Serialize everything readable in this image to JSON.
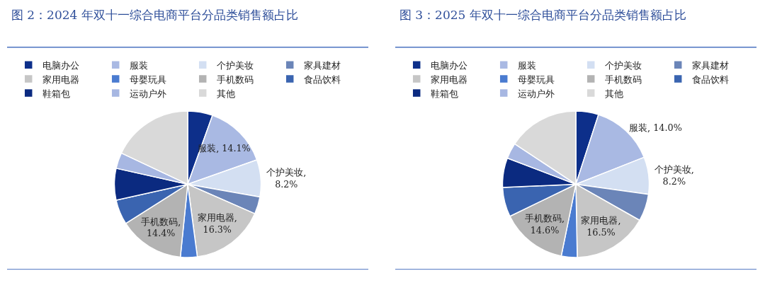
{
  "chart_data": [
    {
      "type": "pie",
      "title": "图 2：2024 年双十一综合电商平台分品类销售额占比",
      "categories": [
        "电脑办公",
        "服装",
        "个护美妆",
        "家具建材",
        "家用电器",
        "母婴玩具",
        "手机数码",
        "食品饮料",
        "鞋箱包",
        "运动户外",
        "其他"
      ],
      "values": [
        5.5,
        14.1,
        8.2,
        3.8,
        16.3,
        3.7,
        14.4,
        5.5,
        7.0,
        3.5,
        18.0
      ],
      "value_labels": [
        null,
        "服装, 14.1%",
        "个护美妆,\n8.2%",
        null,
        "家用电器,\n16.3%",
        null,
        "手机数码,\n14.4%",
        null,
        null,
        null,
        null
      ],
      "colors": [
        "#0d2f8a",
        "#a9b9e3",
        "#d3dff2",
        "#6b85b8",
        "#c6c6c6",
        "#4a7bd0",
        "#b3b3b3",
        "#3a64b0",
        "#0b2a80",
        "#a7b7e2",
        "#d9d9d9"
      ],
      "legend": "top"
    },
    {
      "type": "pie",
      "title": "图 3：2025 年双十一综合电商平台分品类销售额占比",
      "categories": [
        "电脑办公",
        "服装",
        "个护美妆",
        "家具建材",
        "家用电器",
        "母婴玩具",
        "手机数码",
        "食品饮料",
        "鞋箱包",
        "运动户外",
        "其他"
      ],
      "values": [
        5.0,
        14.0,
        8.2,
        6.0,
        16.5,
        3.5,
        14.6,
        6.5,
        6.5,
        3.5,
        15.7
      ],
      "value_labels": [
        null,
        "服装, 14.0%",
        "个护美妆,\n8.2%",
        null,
        "家用电器,\n16.5%",
        null,
        "手机数码,\n14.6%",
        null,
        null,
        null,
        null
      ],
      "colors": [
        "#0d2f8a",
        "#a9b9e3",
        "#d3dff2",
        "#6b85b8",
        "#c6c6c6",
        "#4a7bd0",
        "#b3b3b3",
        "#3a64b0",
        "#0b2a80",
        "#a7b7e2",
        "#d9d9d9"
      ],
      "legend": "top"
    }
  ]
}
